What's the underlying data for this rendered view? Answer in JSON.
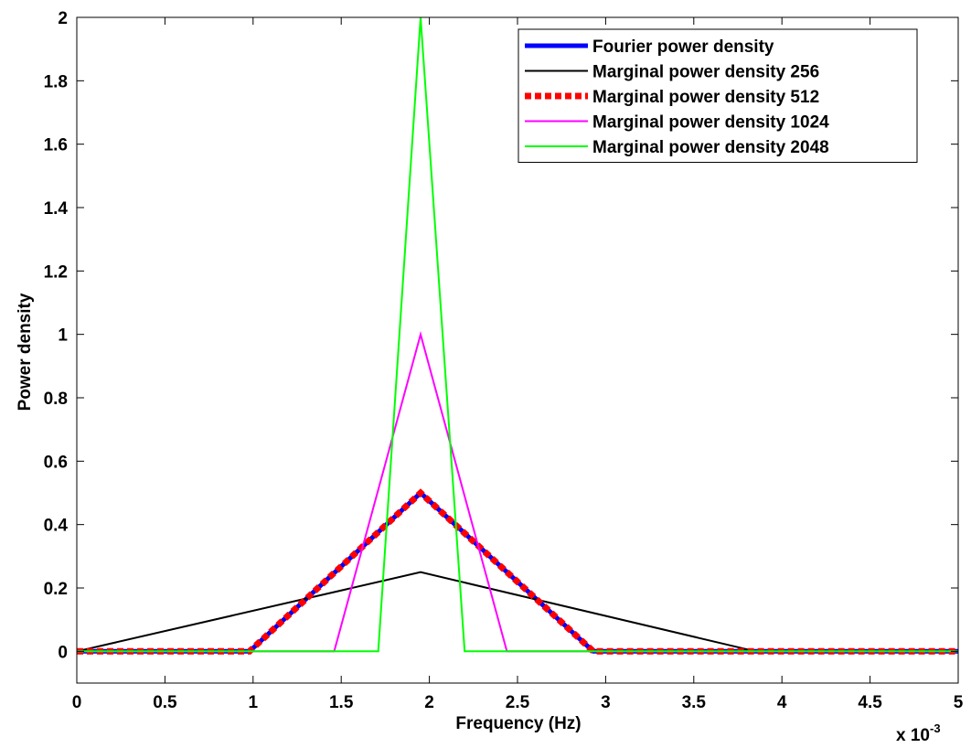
{
  "chart_data": {
    "type": "line",
    "title": "",
    "xlabel": "Frequency (Hz)",
    "ylabel": "Power density",
    "x_exponent_label": "x 10",
    "x_exponent_power": "-3",
    "xlim": [
      0,
      5
    ],
    "ylim": [
      -0.1,
      2
    ],
    "xticks": [
      "0",
      "0.5",
      "1",
      "1.5",
      "2",
      "2.5",
      "3",
      "3.5",
      "4",
      "4.5",
      "5"
    ],
    "yticks": [
      "0",
      "0.2",
      "0.4",
      "0.6",
      "0.8",
      "1",
      "1.2",
      "1.4",
      "1.6",
      "1.8",
      "2"
    ],
    "grid": false,
    "legend_position": "top-right",
    "series": [
      {
        "name": "Fourier power density",
        "color": "#0000ff",
        "style": "solid-thick",
        "x": [
          0,
          0.98,
          1.95,
          2.93,
          5
        ],
        "y": [
          0,
          0,
          0.5,
          0,
          0
        ]
      },
      {
        "name": "Marginal power density 256",
        "color": "#000000",
        "style": "solid",
        "x": [
          0,
          1.95,
          3.85,
          5
        ],
        "y": [
          0,
          0.25,
          0,
          0
        ]
      },
      {
        "name": "Marginal power density 512",
        "color": "#ff0000",
        "style": "dotted-thick",
        "x": [
          0,
          0.98,
          1.95,
          2.93,
          5
        ],
        "y": [
          0,
          0,
          0.5,
          0,
          0
        ]
      },
      {
        "name": "Marginal power density 1024",
        "color": "#ff00ff",
        "style": "solid",
        "x": [
          0,
          1.46,
          1.95,
          2.44,
          5
        ],
        "y": [
          0,
          0,
          1,
          0,
          0
        ]
      },
      {
        "name": "Marginal power density 2048",
        "color": "#00ff00",
        "style": "solid",
        "x": [
          0,
          1.71,
          1.95,
          2.2,
          5
        ],
        "y": [
          0,
          0,
          2,
          0,
          0
        ]
      }
    ]
  }
}
